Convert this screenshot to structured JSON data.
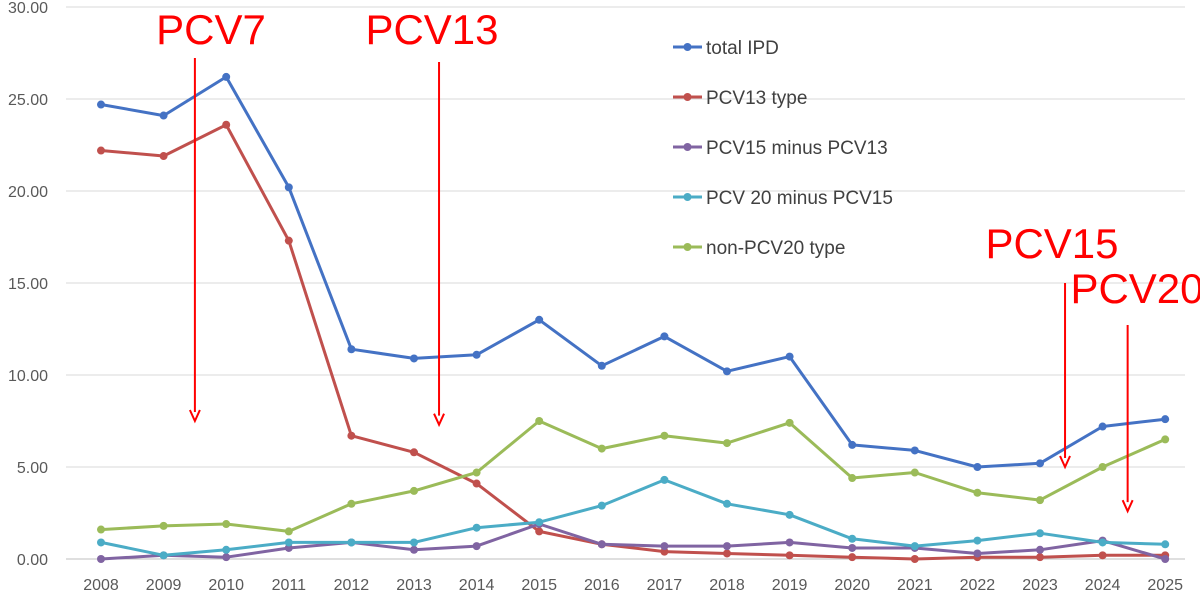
{
  "chart_data": {
    "type": "line",
    "title": "",
    "xlabel": "",
    "ylabel": "",
    "ylim": [
      0,
      30
    ],
    "ytick_labels": [
      "0.00",
      "5.00",
      "10.00",
      "15.00",
      "20.00",
      "25.00",
      "30.00"
    ],
    "grid": true,
    "legend_position": "top-right",
    "categories": [
      "2008",
      "2009",
      "2010",
      "2011",
      "2012",
      "2013",
      "2014",
      "2015",
      "2016",
      "2017",
      "2018",
      "2019",
      "2020",
      "2021",
      "2022",
      "2023",
      "2024",
      "2025"
    ],
    "series": [
      {
        "name": "total IPD",
        "color": "#4472c4",
        "values": [
          24.7,
          24.1,
          26.2,
          20.2,
          11.4,
          10.9,
          11.1,
          13.0,
          10.5,
          12.1,
          10.2,
          11.0,
          6.2,
          5.9,
          5.0,
          5.2,
          7.2,
          7.6
        ]
      },
      {
        "name": "PCV13 type",
        "color": "#c0504d",
        "values": [
          22.2,
          21.9,
          23.6,
          17.3,
          6.7,
          5.8,
          4.1,
          1.5,
          0.8,
          0.4,
          0.3,
          0.2,
          0.1,
          0.0,
          0.1,
          0.1,
          0.2,
          0.2
        ]
      },
      {
        "name": "PCV15 minus PCV13",
        "color": "#8064a2",
        "values": [
          0.0,
          0.2,
          0.1,
          0.6,
          0.9,
          0.5,
          0.7,
          1.9,
          0.8,
          0.7,
          0.7,
          0.9,
          0.6,
          0.6,
          0.3,
          0.5,
          1.0,
          0.0
        ]
      },
      {
        "name": "PCV 20 minus PCV15",
        "color": "#4bacc6",
        "values": [
          0.9,
          0.2,
          0.5,
          0.9,
          0.9,
          0.9,
          1.7,
          2.0,
          2.9,
          4.3,
          3.0,
          2.4,
          1.1,
          0.7,
          1.0,
          1.4,
          0.9,
          0.8
        ]
      },
      {
        "name": "non-PCV20 type",
        "color": "#9bbb59",
        "values": [
          1.6,
          1.8,
          1.9,
          1.5,
          3.0,
          3.7,
          4.7,
          7.5,
          6.0,
          6.7,
          6.3,
          7.4,
          4.4,
          4.7,
          3.6,
          3.2,
          5.0,
          6.5
        ]
      }
    ],
    "annotations": [
      {
        "text": "PCV7",
        "year": 2009.5,
        "arrow_to_value": 7.5
      },
      {
        "text": "PCV13",
        "year": 2013.4,
        "arrow_to_value": 7.3
      },
      {
        "text": "PCV15",
        "year": 2023.4,
        "arrow_to_value": 5.0
      },
      {
        "text": "PCV20",
        "year": 2024.4,
        "arrow_to_value": 2.6
      }
    ],
    "annotation_color": "#ff0000"
  }
}
